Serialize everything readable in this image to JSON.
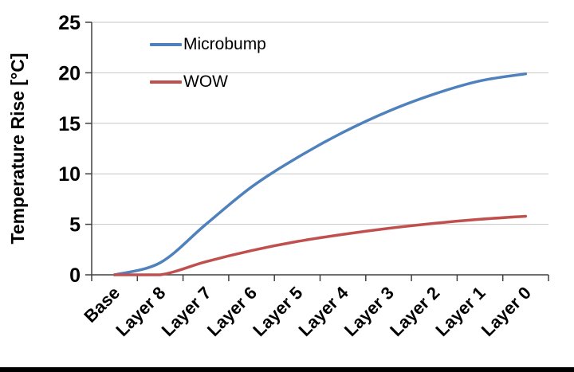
{
  "page": {
    "background_color": "#ffffff",
    "bottom_border_color": "#000000"
  },
  "chart_data": {
    "type": "line",
    "title": "",
    "xlabel": "",
    "ylabel": "Temperature Rise [°C]",
    "ylim": [
      0,
      25
    ],
    "yticks": [
      0,
      5,
      10,
      15,
      20,
      25
    ],
    "grid": true,
    "legend_position": "top-left-inside",
    "categories": [
      "Base",
      "Layer 8",
      "Layer 7",
      "Layer 6",
      "Layer 5",
      "Layer 4",
      "Layer 3",
      "Layer 2",
      "Layer 1",
      "Layer 0"
    ],
    "series": [
      {
        "name": "Microbump",
        "color": "#4F81BD",
        "values": [
          0,
          1.2,
          5.0,
          8.7,
          11.6,
          14.1,
          16.2,
          17.9,
          19.2,
          19.9
        ]
      },
      {
        "name": "WOW",
        "color": "#C0504D",
        "values": [
          0,
          0,
          1.3,
          2.4,
          3.3,
          4.0,
          4.6,
          5.1,
          5.5,
          5.8
        ]
      }
    ],
    "style": {
      "gridline_color": "#C6C6C6",
      "axis_color": "#404040",
      "tick_label_color": "#000000"
    }
  }
}
